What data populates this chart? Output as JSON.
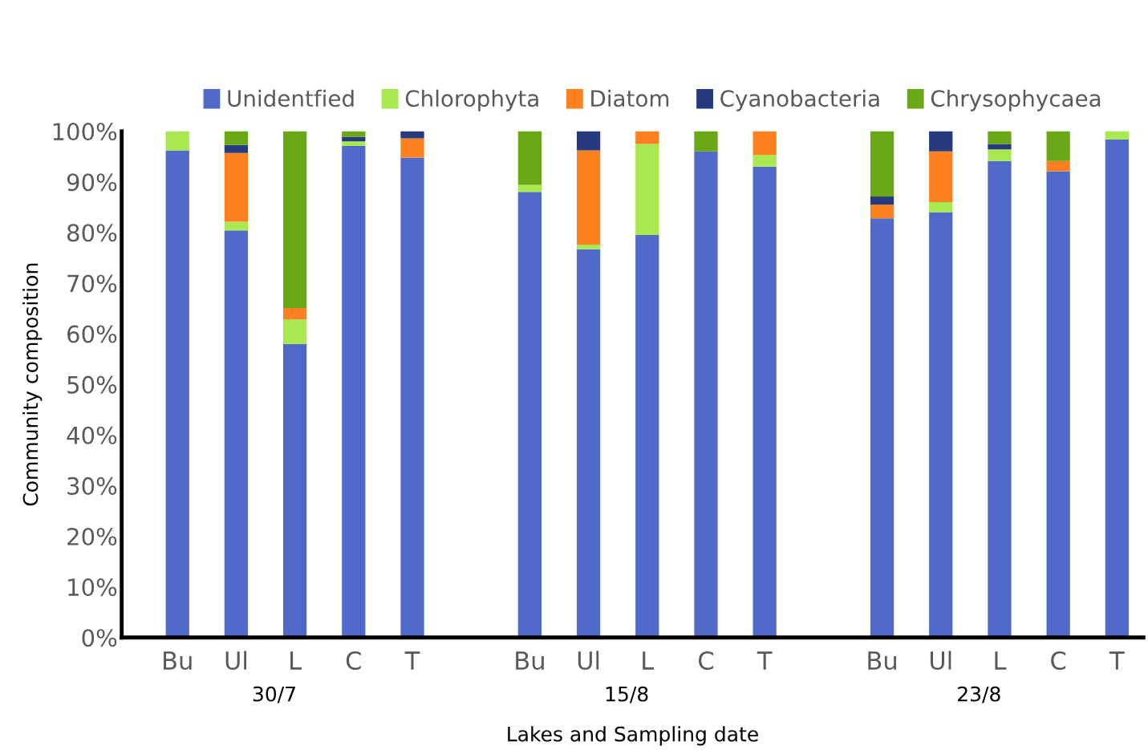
{
  "chart_data": {
    "type": "bar",
    "stacked": true,
    "xlabel": "Lakes and Sampling date",
    "ylabel": "Community composition",
    "categories": [
      "Bu",
      "Ul",
      "L",
      "C",
      "T",
      null,
      "Bu",
      "Ul",
      "L",
      "C",
      "T",
      null,
      "Bu",
      "Ul",
      "L",
      "C",
      "T"
    ],
    "series": [
      {
        "name": "Unidentfied",
        "color": "#4f6ac8",
        "values": [
          96.2,
          80.4,
          58.0,
          97.1,
          94.8,
          null,
          88.0,
          76.7,
          79.5,
          96.0,
          93.0,
          null,
          82.8,
          84.0,
          94.1,
          92.1,
          98.4
        ]
      },
      {
        "name": "Chlorophyta",
        "color": "#a8e950",
        "values": [
          3.8,
          1.7,
          4.8,
          0.9,
          0,
          null,
          1.4,
          0.9,
          18.0,
          0,
          2.3,
          null,
          0,
          2.0,
          2.3,
          0,
          1.6
        ]
      },
      {
        "name": "Diatom",
        "color": "#fd8120",
        "values": [
          0,
          13.6,
          2.3,
          0,
          3.8,
          null,
          0,
          18.6,
          2.5,
          0,
          4.7,
          null,
          2.7,
          10.0,
          0,
          2.0,
          0
        ]
      },
      {
        "name": "Cyanobacteria",
        "color": "#263a7d",
        "values": [
          0,
          1.6,
          0,
          0.9,
          1.4,
          null,
          0,
          3.8,
          0,
          0,
          0,
          null,
          1.6,
          4.0,
          1.1,
          0,
          0
        ]
      },
      {
        "name": "Chrysophycaea",
        "color": "#6aa815",
        "values": [
          0,
          2.7,
          34.9,
          1.1,
          0,
          null,
          10.6,
          0,
          0,
          4.0,
          0,
          null,
          12.9,
          0,
          2.5,
          5.9,
          0
        ]
      }
    ],
    "ylim": [
      0,
      100
    ],
    "yticks": [
      {
        "value": 0,
        "label": "0%"
      },
      {
        "value": 10,
        "label": "10%"
      },
      {
        "value": 20,
        "label": "20%"
      },
      {
        "value": 30,
        "label": "30%"
      },
      {
        "value": 40,
        "label": "40%"
      },
      {
        "value": 50,
        "label": "50%"
      },
      {
        "value": 60,
        "label": "60%"
      },
      {
        "value": 70,
        "label": "70%"
      },
      {
        "value": 80,
        "label": "80%"
      },
      {
        "value": 90,
        "label": "90%"
      },
      {
        "value": 100,
        "label": "100%"
      }
    ],
    "annotations": [
      "30/7",
      "15/8",
      "23/8"
    ],
    "grid": false,
    "legend": "top"
  }
}
